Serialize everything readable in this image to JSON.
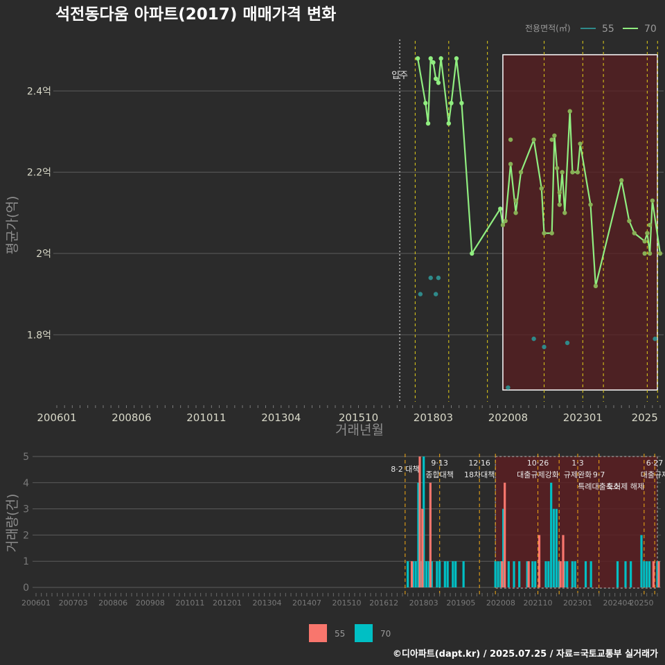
{
  "title": "석전동다움 아파트(2017) 매매가격 변화",
  "footer": "©디아파트(dapt.kr) / 2025.07.25 / 자료=국토교통부 실거래가",
  "colors": {
    "s55": "#f8766d",
    "s70": "#00bfc4",
    "line70": "#90ee80",
    "dot55": "#2f8a8a",
    "vline": "#d4c11a",
    "highlight": "#5a1f22"
  },
  "chart_data": [
    {
      "type": "line",
      "title": "석전동다움 아파트(2017) 매매가격 변화",
      "xlabel": "거래년월",
      "ylabel": "평균가(억)",
      "x_ticks": [
        "200601",
        "200806",
        "201011",
        "201304",
        "201510",
        "201803",
        "202008",
        "202301",
        "2025"
      ],
      "y_ticks": [
        "1.8억",
        "2억",
        "2.2억",
        "2.4억"
      ],
      "y_tick_values": [
        1.8,
        2.0,
        2.2,
        2.4
      ],
      "ylim": [
        1.63,
        2.53
      ],
      "xlim": [
        "2006-01",
        "2025-07"
      ],
      "legend": {
        "title": "전용면적(㎡)",
        "position": "top-right",
        "items": [
          "55",
          "70"
        ]
      },
      "annotation_move_in": {
        "label": "입주",
        "x": "2017-02"
      },
      "policy_lines": [
        "2017-08",
        "2018-09",
        "2019-12",
        "2021-10",
        "2023-01",
        "2023-09",
        "2025-02",
        "2025-06"
      ],
      "highlight_range": [
        "2020-06",
        "2025-07"
      ],
      "series": [
        {
          "name": "70",
          "points": [
            [
              "2017-09",
              2.48
            ],
            [
              "2017-12",
              2.37
            ],
            [
              "2018-01",
              2.32
            ],
            [
              "2018-02",
              2.48
            ],
            [
              "2018-03",
              2.47
            ],
            [
              "2018-04",
              2.43
            ],
            [
              "2018-05",
              2.42
            ],
            [
              "2018-06",
              2.48
            ],
            [
              "2018-09",
              2.32
            ],
            [
              "2018-10",
              2.37
            ],
            [
              "2018-12",
              2.48
            ],
            [
              "2019-02",
              2.37
            ],
            [
              "2019-06",
              2.0
            ],
            [
              "2020-05",
              2.11
            ],
            [
              "2020-06",
              2.07
            ],
            [
              "2020-07",
              2.08
            ],
            [
              "2020-09",
              2.22
            ],
            [
              "2020-11",
              2.1
            ],
            [
              "2021-01",
              2.2
            ],
            [
              "2021-06",
              2.28
            ],
            [
              "2021-09",
              2.16
            ],
            [
              "2021-10",
              2.05
            ],
            [
              "2022-01",
              2.05
            ],
            [
              "2022-02",
              2.29
            ],
            [
              "2022-03",
              2.21
            ],
            [
              "2022-04",
              2.12
            ],
            [
              "2022-05",
              2.2
            ],
            [
              "2022-06",
              2.1
            ],
            [
              "2022-08",
              2.35
            ],
            [
              "2022-09",
              2.2
            ],
            [
              "2022-11",
              2.2
            ],
            [
              "2022-12",
              2.27
            ],
            [
              "2023-04",
              2.12
            ],
            [
              "2023-06",
              1.92
            ],
            [
              "2024-04",
              2.18
            ],
            [
              "2024-07",
              2.08
            ],
            [
              "2024-09",
              2.05
            ],
            [
              "2025-01",
              2.03
            ],
            [
              "2025-02",
              2.05
            ],
            [
              "2025-03",
              2.0
            ],
            [
              "2025-04",
              2.13
            ],
            [
              "2025-07",
              2.0
            ]
          ],
          "extra_dots": [
            [
              "2020-09",
              2.28
            ],
            [
              "2020-11",
              2.13
            ],
            [
              "2022-01",
              2.28
            ],
            [
              "2022-04",
              2.15
            ],
            [
              "2025-01",
              2.0
            ],
            [
              "2025-03",
              2.07
            ]
          ]
        },
        {
          "name": "55",
          "points": [
            [
              "2017-10",
              1.9
            ],
            [
              "2018-02",
              1.94
            ],
            [
              "2018-04",
              1.9
            ],
            [
              "2018-05",
              1.94
            ],
            [
              "2020-08",
              1.67
            ],
            [
              "2021-06",
              1.79
            ],
            [
              "2021-10",
              1.77
            ],
            [
              "2022-07",
              1.78
            ],
            [
              "2025-05",
              1.79
            ]
          ]
        }
      ]
    },
    {
      "type": "bar",
      "ylabel": "거래량(건)",
      "x_ticks": [
        "200601",
        "200703",
        "200806",
        "200908",
        "201011",
        "201201",
        "201304",
        "201407",
        "201510",
        "201612",
        "201803",
        "201905",
        "202008",
        "202110",
        "202301",
        "202404",
        "20250"
      ],
      "y_ticks": [
        "0",
        "1",
        "2",
        "3",
        "4",
        "5"
      ],
      "ylim": [
        0,
        5
      ],
      "legend": {
        "position": "bottom",
        "items": [
          "55",
          "70"
        ]
      },
      "highlight_range": [
        "2020-06",
        "2025-07"
      ],
      "policy_lines": [
        "2017-08",
        "2018-09",
        "2019-12",
        "2020-06",
        "2021-10",
        "2022-06",
        "2023-01",
        "2023-09",
        "2025-02",
        "2025-06"
      ],
      "annotations": [
        {
          "x": "2017-08",
          "lines": [
            "8·2 대책"
          ]
        },
        {
          "x": "2018-09",
          "lines": [
            "9·13",
            "종합대책"
          ]
        },
        {
          "x": "2019-12",
          "lines": [
            "12·16",
            "18차대책"
          ]
        },
        {
          "x": "2021-10",
          "lines": [
            "10·26",
            "대출규제강화"
          ]
        },
        {
          "x": "2023-01",
          "lines": [
            "1·3",
            "규제완화"
          ]
        },
        {
          "x": "2023-09",
          "lines": [
            "9·7",
            "특례대출축소"
          ]
        },
        {
          "x": "2024-07",
          "lines": [
            "토허제 해제"
          ]
        },
        {
          "x": "2025-06",
          "lines": [
            "6·27",
            "대출규제"
          ]
        }
      ],
      "series": [
        {
          "name": "55",
          "values": [
            [
              "2017-10",
              1
            ],
            [
              "2018-01",
              5
            ],
            [
              "2018-02",
              3
            ],
            [
              "2018-05",
              4
            ],
            [
              "2020-08",
              1
            ],
            [
              "2020-09",
              4
            ],
            [
              "2021-06",
              1
            ],
            [
              "2021-10",
              2
            ],
            [
              "2022-06",
              1
            ],
            [
              "2022-07",
              2
            ],
            [
              "2025-05",
              1
            ],
            [
              "2025-07",
              1
            ]
          ]
        },
        {
          "name": "70",
          "values": [
            [
              "2017-09",
              1
            ],
            [
              "2017-11",
              1
            ],
            [
              "2017-12",
              1
            ],
            [
              "2018-01",
              4
            ],
            [
              "2018-02",
              1
            ],
            [
              "2018-03",
              5
            ],
            [
              "2018-04",
              1
            ],
            [
              "2018-05",
              1
            ],
            [
              "2018-06",
              1
            ],
            [
              "2018-08",
              1
            ],
            [
              "2018-09",
              1
            ],
            [
              "2018-11",
              1
            ],
            [
              "2018-12",
              1
            ],
            [
              "2019-02",
              1
            ],
            [
              "2019-03",
              1
            ],
            [
              "2019-06",
              1
            ],
            [
              "2020-06",
              1
            ],
            [
              "2020-07",
              1
            ],
            [
              "2020-08",
              1
            ],
            [
              "2020-09",
              3
            ],
            [
              "2020-11",
              1
            ],
            [
              "2021-01",
              1
            ],
            [
              "2021-03",
              1
            ],
            [
              "2021-06",
              1
            ],
            [
              "2021-08",
              1
            ],
            [
              "2021-09",
              1
            ],
            [
              "2022-01",
              1
            ],
            [
              "2022-02",
              1
            ],
            [
              "2022-03",
              4
            ],
            [
              "2022-04",
              3
            ],
            [
              "2022-05",
              3
            ],
            [
              "2022-06",
              1
            ],
            [
              "2022-08",
              1
            ],
            [
              "2022-09",
              1
            ],
            [
              "2022-11",
              1
            ],
            [
              "2022-12",
              1
            ],
            [
              "2023-04",
              1
            ],
            [
              "2023-06",
              1
            ],
            [
              "2024-04",
              1
            ],
            [
              "2024-07",
              1
            ],
            [
              "2024-09",
              1
            ],
            [
              "2025-01",
              2
            ],
            [
              "2025-02",
              1
            ],
            [
              "2025-03",
              1
            ],
            [
              "2025-04",
              1
            ],
            [
              "2025-07",
              1
            ]
          ]
        }
      ]
    }
  ]
}
